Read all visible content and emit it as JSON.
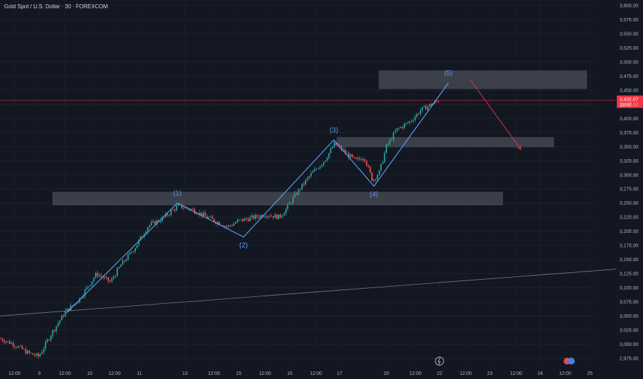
{
  "header": {
    "title": "Gold Spot / U.S. Dollar · 30 · FOREXCOM"
  },
  "price_axis": {
    "ticks": [
      "3,600.00",
      "3,575.00",
      "3,550.00",
      "3,525.00",
      "3,500.00",
      "3,475.00",
      "3,450.00",
      "3,425.00",
      "3,400.00",
      "3,375.00",
      "3,350.00",
      "3,325.00",
      "3,300.00",
      "3,275.00",
      "3,250.00",
      "3,225.00",
      "3,200.00",
      "3,175.00",
      "3,150.00",
      "3,125.00",
      "3,100.00",
      "3,075.00",
      "3,050.00",
      "3,025.00",
      "3,000.00",
      "2,975.00"
    ],
    "current_price": "3,432.07",
    "countdown": "28:50"
  },
  "time_axis": {
    "ticks": [
      "12:00",
      "9",
      "12:00",
      "10",
      "12:00",
      "11",
      "13",
      "12:00",
      "15",
      "12:00",
      "16",
      "12:00",
      "17",
      "20",
      "12:00",
      "22",
      "12:00",
      "23",
      "12:00",
      "24",
      "12:00",
      "25"
    ]
  },
  "waves": {
    "labels": [
      "(1)",
      "(2)",
      "(3)",
      "(4)",
      "(5)"
    ]
  },
  "colors": {
    "background": "#131722",
    "up": "#26a69a",
    "down": "#ef5350",
    "wave": "#5b9cf6",
    "zone": "#5d606b",
    "price_line": "#f23645",
    "trendline": "#787b86"
  },
  "chart_data": {
    "type": "candlestick",
    "title": "Gold Spot / U.S. Dollar · 30 · FOREXCOM",
    "ylim": [
      2962,
      3608
    ],
    "last_price": 3432.07,
    "close_path": [
      [
        0,
        3010
      ],
      [
        20,
        3000
      ],
      [
        40,
        2985
      ],
      [
        56,
        2978
      ],
      [
        75,
        3020
      ],
      [
        95,
        3058
      ],
      [
        115,
        3080
      ],
      [
        140,
        3125
      ],
      [
        160,
        3110
      ],
      [
        175,
        3140
      ],
      [
        195,
        3170
      ],
      [
        215,
        3210
      ],
      [
        235,
        3222
      ],
      [
        258,
        3245
      ],
      [
        280,
        3238
      ],
      [
        305,
        3222
      ],
      [
        330,
        3208
      ],
      [
        345,
        3218
      ],
      [
        365,
        3224
      ],
      [
        385,
        3230
      ],
      [
        405,
        3225
      ],
      [
        415,
        3240
      ],
      [
        430,
        3268
      ],
      [
        450,
        3300
      ],
      [
        470,
        3325
      ],
      [
        485,
        3355
      ],
      [
        500,
        3340
      ],
      [
        515,
        3325
      ],
      [
        528,
        3332
      ],
      [
        540,
        3290
      ],
      [
        550,
        3305
      ],
      [
        560,
        3350
      ],
      [
        575,
        3380
      ],
      [
        595,
        3395
      ],
      [
        610,
        3415
      ],
      [
        625,
        3425
      ],
      [
        636,
        3432
      ]
    ],
    "elliott_wave": [
      {
        "label": "(1)",
        "x": 257,
        "price": 3250
      },
      {
        "label": "(2)",
        "x": 353,
        "price": 3190
      },
      {
        "label": "(3)",
        "x": 484,
        "price": 3362
      },
      {
        "label": "(4)",
        "x": 542,
        "price": 3280
      },
      {
        "label": "(5)",
        "x": 650,
        "price": 3463
      }
    ],
    "zones": [
      {
        "price_top": 3485,
        "price_bottom": 3452
      },
      {
        "price_top": 3367,
        "price_bottom": 3349
      },
      {
        "price_top": 3270,
        "price_bottom": 3246
      }
    ],
    "projection": {
      "from": 3468,
      "to": 3345
    },
    "trendline": {
      "from": 3050,
      "to": 3133
    }
  }
}
